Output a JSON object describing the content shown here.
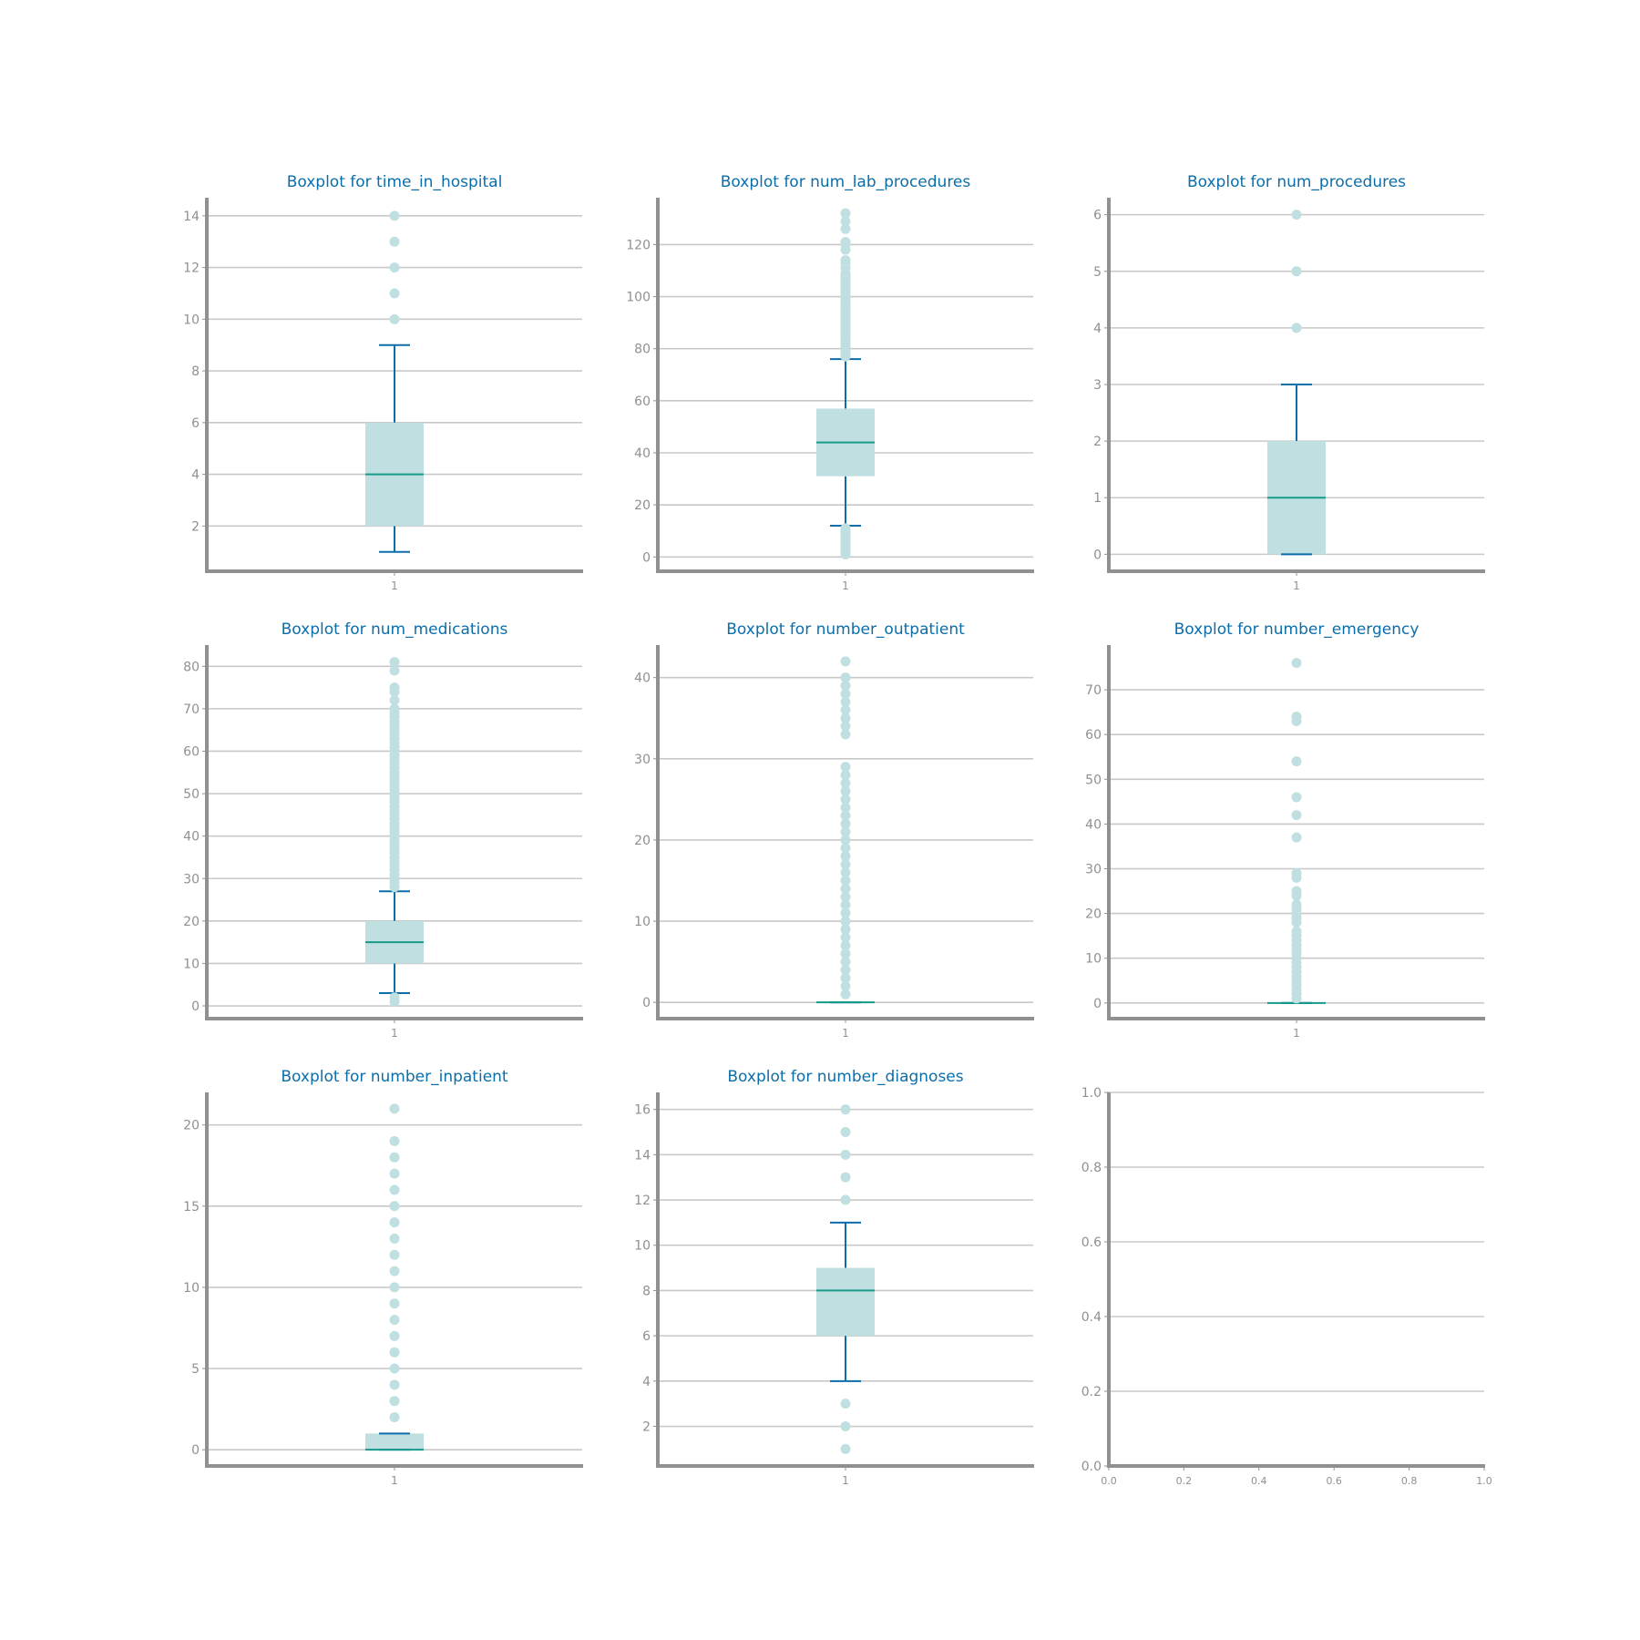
{
  "style": {
    "grid_color": "#c8c8c8",
    "spine_color": "#909090",
    "tick_color": "#909090",
    "title_color": "#0b6eab",
    "box_fill": "#c0dfe1",
    "whisker_color": "#0b6eab",
    "median_color": "#169a8a",
    "flier_color": "#c0dfe1"
  },
  "chart_data": [
    {
      "type": "boxplot",
      "title": "Boxplot for time_in_hospital",
      "xticks": [
        "1"
      ],
      "ylim": [
        0.25,
        14.7
      ],
      "yticks": [
        2,
        4,
        6,
        8,
        10,
        12,
        14
      ],
      "ytick_labels": [
        "2",
        "4",
        "6",
        "8",
        "10",
        "12",
        "14"
      ],
      "grid": true,
      "boxes": [
        {
          "whislo": 1,
          "q1": 2,
          "med": 4,
          "q3": 6,
          "whishi": 9,
          "fliers": [
            10,
            11,
            12,
            13,
            14
          ]
        }
      ]
    },
    {
      "type": "boxplot",
      "title": "Boxplot for num_lab_procedures",
      "xticks": [
        "1"
      ],
      "ylim": [
        -5.5,
        138
      ],
      "yticks": [
        0,
        20,
        40,
        60,
        80,
        100,
        120
      ],
      "ytick_labels": [
        "0",
        "20",
        "40",
        "60",
        "80",
        "100",
        "120"
      ],
      "grid": true,
      "boxes": [
        {
          "whislo": 12,
          "q1": 31,
          "med": 44,
          "q3": 57,
          "whishi": 76,
          "fliers": [
            1,
            2,
            3,
            4,
            5,
            6,
            7,
            8,
            9,
            10,
            11,
            77,
            78,
            79,
            80,
            81,
            82,
            83,
            84,
            85,
            86,
            87,
            88,
            89,
            90,
            91,
            92,
            93,
            94,
            95,
            96,
            97,
            98,
            99,
            100,
            101,
            102,
            103,
            104,
            105,
            106,
            107,
            108,
            109,
            111,
            113,
            114,
            118,
            120,
            121,
            126,
            129,
            132
          ]
        }
      ]
    },
    {
      "type": "boxplot",
      "title": "Boxplot for num_procedures",
      "xticks": [
        "1"
      ],
      "ylim": [
        -0.3,
        6.3
      ],
      "yticks": [
        0,
        1,
        2,
        3,
        4,
        5,
        6
      ],
      "ytick_labels": [
        "0",
        "1",
        "2",
        "3",
        "4",
        "5",
        "6"
      ],
      "grid": true,
      "boxes": [
        {
          "whislo": 0,
          "q1": 0,
          "med": 1,
          "q3": 2,
          "whishi": 3,
          "fliers": [
            4,
            5,
            6
          ]
        }
      ]
    },
    {
      "type": "boxplot",
      "title": "Boxplot for num_medications",
      "xticks": [
        "1"
      ],
      "ylim": [
        -3,
        85
      ],
      "yticks": [
        0,
        10,
        20,
        30,
        40,
        50,
        60,
        70,
        80
      ],
      "ytick_labels": [
        "0",
        "10",
        "20",
        "30",
        "40",
        "50",
        "60",
        "70",
        "80"
      ],
      "grid": true,
      "boxes": [
        {
          "whislo": 3,
          "q1": 10,
          "med": 15,
          "q3": 20,
          "whishi": 27,
          "fliers": [
            1,
            2,
            28,
            29,
            30,
            31,
            32,
            33,
            34,
            35,
            36,
            37,
            38,
            39,
            40,
            41,
            42,
            43,
            44,
            45,
            46,
            47,
            48,
            49,
            50,
            51,
            52,
            53,
            54,
            55,
            56,
            57,
            58,
            59,
            60,
            61,
            62,
            63,
            64,
            65,
            66,
            67,
            68,
            69,
            70,
            72,
            74,
            75,
            79,
            81
          ]
        }
      ]
    },
    {
      "type": "boxplot",
      "title": "Boxplot for number_outpatient",
      "xticks": [
        "1"
      ],
      "ylim": [
        -2,
        44
      ],
      "yticks": [
        0,
        10,
        20,
        30,
        40
      ],
      "ytick_labels": [
        "0",
        "10",
        "20",
        "30",
        "40"
      ],
      "grid": true,
      "boxes": [
        {
          "whislo": 0,
          "q1": 0,
          "med": 0,
          "q3": 0,
          "whishi": 0,
          "fliers": [
            1,
            2,
            3,
            4,
            5,
            6,
            7,
            8,
            9,
            10,
            11,
            12,
            13,
            14,
            15,
            16,
            17,
            18,
            19,
            20,
            21,
            22,
            23,
            24,
            25,
            26,
            27,
            28,
            29,
            33,
            34,
            35,
            36,
            37,
            38,
            39,
            40,
            42
          ]
        }
      ]
    },
    {
      "type": "boxplot",
      "title": "Boxplot for number_emergency",
      "xticks": [
        "1"
      ],
      "ylim": [
        -3.5,
        80
      ],
      "yticks": [
        0,
        10,
        20,
        30,
        40,
        50,
        60,
        70
      ],
      "ytick_labels": [
        "0",
        "10",
        "20",
        "30",
        "40",
        "50",
        "60",
        "70"
      ],
      "grid": true,
      "boxes": [
        {
          "whislo": 0,
          "q1": 0,
          "med": 0,
          "q3": 0,
          "whishi": 0,
          "fliers": [
            1,
            2,
            3,
            4,
            5,
            6,
            7,
            8,
            9,
            10,
            11,
            12,
            13,
            14,
            15,
            16,
            18,
            19,
            20,
            21,
            22,
            24,
            25,
            28,
            29,
            37,
            42,
            46,
            54,
            63,
            64,
            76
          ]
        }
      ]
    },
    {
      "type": "boxplot",
      "title": "Boxplot for number_inpatient",
      "xticks": [
        "1"
      ],
      "ylim": [
        -1,
        22
      ],
      "yticks": [
        0,
        5,
        10,
        15,
        20
      ],
      "ytick_labels": [
        "0",
        "5",
        "10",
        "15",
        "20"
      ],
      "grid": true,
      "boxes": [
        {
          "whislo": 0,
          "q1": 0,
          "med": 0,
          "q3": 1,
          "whishi": 1,
          "fliers": [
            2,
            3,
            4,
            5,
            6,
            7,
            8,
            9,
            10,
            11,
            12,
            13,
            14,
            15,
            16,
            17,
            18,
            19,
            21
          ]
        }
      ]
    },
    {
      "type": "boxplot",
      "title": "Boxplot for number_diagnoses",
      "xticks": [
        "1"
      ],
      "ylim": [
        0.25,
        16.75
      ],
      "yticks": [
        2,
        4,
        6,
        8,
        10,
        12,
        14,
        16
      ],
      "ytick_labels": [
        "2",
        "4",
        "6",
        "8",
        "10",
        "12",
        "14",
        "16"
      ],
      "grid": true,
      "boxes": [
        {
          "whislo": 4,
          "q1": 6,
          "med": 8,
          "q3": 9,
          "whishi": 11,
          "fliers": [
            1,
            2,
            3,
            12,
            13,
            14,
            15,
            16
          ]
        }
      ]
    },
    {
      "type": "empty",
      "title": "",
      "xlim": [
        0,
        1
      ],
      "ylim": [
        0,
        1
      ],
      "xticks": [
        0,
        0.2,
        0.4,
        0.6,
        0.8,
        1.0
      ],
      "xtick_labels": [
        "0.0",
        "0.2",
        "0.4",
        "0.6",
        "0.8",
        "1.0"
      ],
      "yticks": [
        0,
        0.2,
        0.4,
        0.6,
        0.8,
        1.0
      ],
      "ytick_labels": [
        "0.0",
        "0.2",
        "0.4",
        "0.6",
        "0.8",
        "1.0"
      ],
      "grid": true,
      "boxes": []
    }
  ]
}
